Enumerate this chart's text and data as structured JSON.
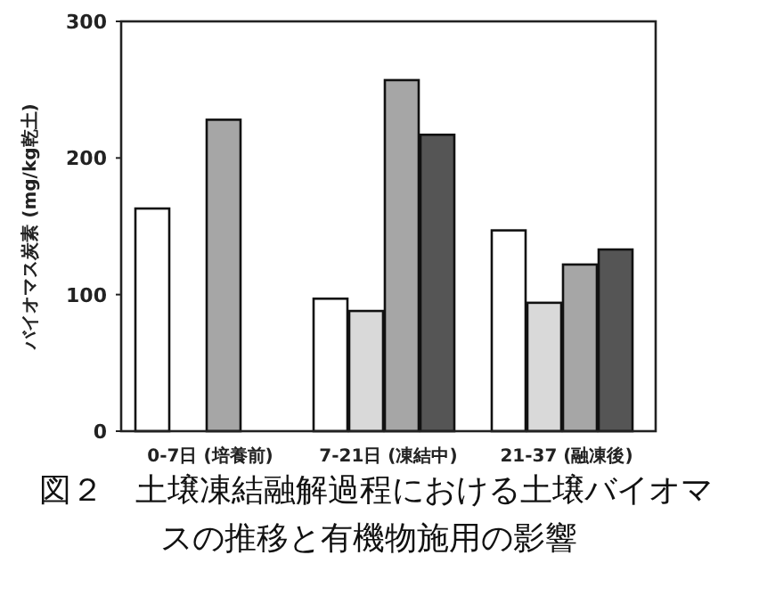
{
  "chart_data": {
    "type": "bar",
    "categories": [
      "0-7日 (培養前)",
      "7-21日 (凍結中)",
      "21-37 (融凍後)"
    ],
    "series": [
      {
        "color": "#ffffff",
        "values": [
          163,
          97,
          147
        ]
      },
      {
        "color": "#d9d9d9",
        "values": [
          null,
          88,
          94
        ]
      },
      {
        "color": "#a6a6a6",
        "values": [
          228,
          257,
          122
        ]
      },
      {
        "color": "#555555",
        "values": [
          null,
          217,
          133
        ]
      }
    ],
    "ylabel": "バイオマス炭素 (mg/kg乾土)",
    "ylim": [
      0,
      300
    ],
    "yticks": [
      0,
      100,
      200,
      300
    ],
    "annotations": [
      "図２　土壌凍結融解過程における土壌バイオマスの推移と有機物施用の影響"
    ]
  }
}
